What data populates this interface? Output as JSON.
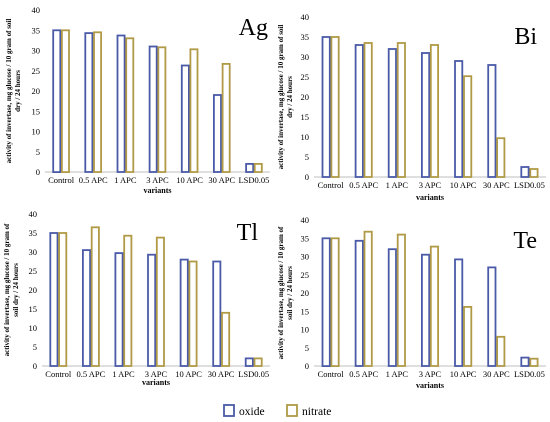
{
  "legend": {
    "oxide": "oxide",
    "nitrate": "nitrate"
  },
  "colors": {
    "oxide": "#4a5aa8",
    "nitrate": "#b09a45"
  },
  "chart_data": [
    {
      "type": "bar",
      "panel_label": "Ag",
      "categories": [
        "Control",
        "0.5 APC",
        "1 APC",
        "3 APC",
        "10 APC",
        "30 APC",
        "LSD0.05"
      ],
      "series": [
        {
          "name": "oxide",
          "values": [
            35,
            34.3,
            33.7,
            31,
            26.3,
            19,
            2
          ]
        },
        {
          "name": "nitrate",
          "values": [
            35,
            34.5,
            33,
            30.8,
            30.3,
            26.7,
            2
          ]
        }
      ],
      "xlabel": "variants",
      "ylabel": "activity of invertase, mg glucose / 10 gram of soil dry / 24 hours",
      "ylim": [
        0,
        40
      ],
      "yticks": [
        0,
        5,
        10,
        15,
        20,
        25,
        30,
        35,
        40
      ]
    },
    {
      "type": "bar",
      "panel_label": "Bi",
      "categories": [
        "Control",
        "0.5 APC",
        "1 APC",
        "3 APC",
        "10 APC",
        "30 APC",
        "LSD0.05"
      ],
      "series": [
        {
          "name": "oxide",
          "values": [
            35,
            33,
            32,
            31,
            29,
            28,
            2.5
          ]
        },
        {
          "name": "nitrate",
          "values": [
            35,
            33.5,
            33.5,
            33,
            25.2,
            9.7,
            2
          ]
        }
      ],
      "xlabel": "variants",
      "ylabel": "activity of invertase, mg glucose / 10 gram of soil dry / 24 hours",
      "ylim": [
        0,
        40
      ],
      "yticks": [
        0,
        5,
        10,
        15,
        20,
        25,
        30,
        35,
        40
      ]
    },
    {
      "type": "bar",
      "panel_label": "Tl",
      "categories": [
        "Control",
        "0.5 APC",
        "1 APC",
        "3 APC",
        "10 APC",
        "30 APC",
        "LSD0.05"
      ],
      "series": [
        {
          "name": "oxide",
          "values": [
            35,
            30.5,
            29.7,
            29.3,
            28,
            27.5,
            2
          ]
        },
        {
          "name": "nitrate",
          "values": [
            35,
            36.5,
            34.3,
            33.8,
            27.5,
            14,
            2
          ]
        }
      ],
      "xlabel": "variants",
      "ylabel": "activity of invertase, mg glucose / 10 gram of soil dry / 24 hours",
      "ylim": [
        0,
        40
      ],
      "yticks": [
        0,
        5,
        10,
        15,
        20,
        25,
        30,
        35,
        40
      ]
    },
    {
      "type": "bar",
      "panel_label": "Te",
      "categories": [
        "Control",
        "0.5 APC",
        "1 APC",
        "3 APC",
        "10 APC",
        "30 APC",
        "LSD0.05"
      ],
      "series": [
        {
          "name": "oxide",
          "values": [
            35,
            34.3,
            32,
            30.5,
            29.2,
            27,
            2.3
          ]
        },
        {
          "name": "nitrate",
          "values": [
            35,
            36.8,
            36,
            32.7,
            16.2,
            8,
            2
          ]
        }
      ],
      "xlabel": "variants",
      "ylabel": "activity of invertase, mg glucose / 10 gram of soil dry / 24 hours",
      "ylim": [
        0,
        40
      ],
      "yticks": [
        0,
        5,
        10,
        15,
        20,
        25,
        30,
        35,
        40
      ]
    }
  ]
}
